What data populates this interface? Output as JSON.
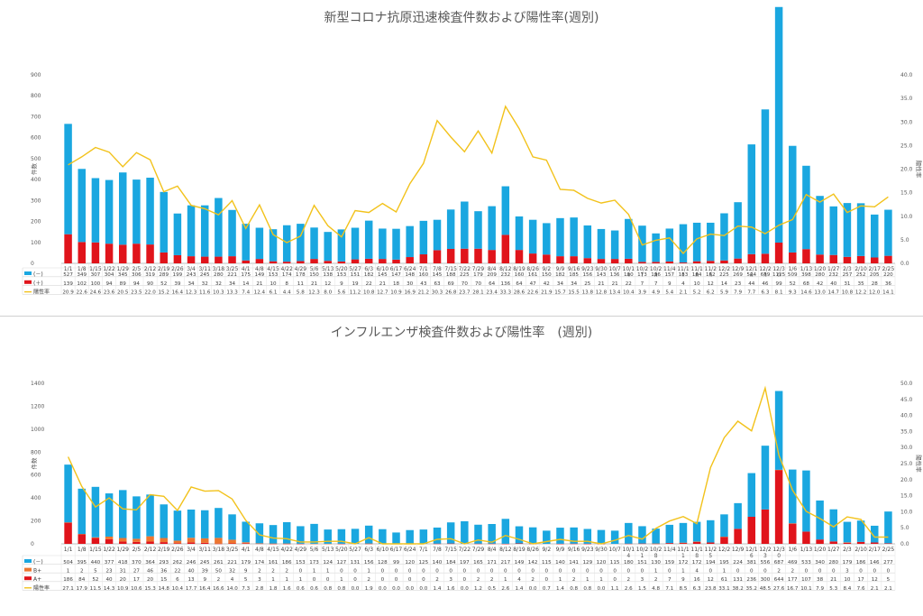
{
  "colors": {
    "neg": "#1aa7e0",
    "pos": "#e0141b",
    "bplus": "#ec7630",
    "rate": "#f2c21b"
  },
  "chart_data": [
    {
      "type": "bar",
      "title": "新型コロナ抗原迅速検査件数および陽性率(週別)",
      "ylabel": "件数",
      "y2label": "陽性率",
      "ylim": [
        0,
        900
      ],
      "y2lim": [
        0,
        40
      ],
      "yticks": [
        "0",
        "100",
        "200",
        "300",
        "400",
        "500",
        "600",
        "700",
        "800",
        "900"
      ],
      "y2ticks": [
        "0.0",
        "5.0",
        "10.0",
        "15.0",
        "20.0",
        "25.0",
        "30.0",
        "35.0",
        "40.0"
      ],
      "categories": [
        "1/1",
        "1/8",
        "1/15",
        "1/22",
        "1/29",
        "2/5",
        "2/12",
        "2/19",
        "2/26",
        "3/4",
        "3/11",
        "3/18",
        "3/25",
        "4/1",
        "4/8",
        "4/15",
        "4/22",
        "4/29",
        "5/6",
        "5/13",
        "5/20",
        "5/27",
        "6/3",
        "6/10",
        "6/17",
        "6/24",
        "7/1",
        "7/8",
        "7/15",
        "7/22",
        "7/29",
        "8/4",
        "8/12",
        "8/19",
        "8/26",
        "9/2",
        "9/9",
        "9/16",
        "9/23",
        "9/30",
        "10/7",
        "10/14",
        "10/21",
        "10/28",
        "11/4",
        "11/11",
        "11/18",
        "11/25",
        "12/2",
        "12/9",
        "12/16",
        "12/23",
        "12/30",
        "1/6",
        "1/13",
        "1/20",
        "1/27",
        "2/3",
        "2/10",
        "2/17",
        "2/25"
      ],
      "xlabels": [
        [
          "1/1"
        ],
        [
          "1/8"
        ],
        [
          "1/15"
        ],
        [
          "1/22"
        ],
        [
          "1/29"
        ],
        [
          "2/5"
        ],
        [
          "2/12"
        ],
        [
          "2/19"
        ],
        [
          "2/26"
        ],
        [
          "3/4"
        ],
        [
          "3/11"
        ],
        [
          "3/18"
        ],
        [
          "3/25"
        ],
        [
          "4/1"
        ],
        [
          "4/8"
        ],
        [
          "4/15"
        ],
        [
          "4/22"
        ],
        [
          "4/29"
        ],
        [
          "5/6"
        ],
        [
          "5/13"
        ],
        [
          "5/20"
        ],
        [
          "5/27"
        ],
        [
          "6/3"
        ],
        [
          "6/10"
        ],
        [
          "6/17"
        ],
        [
          "6/24"
        ],
        [
          "7/1"
        ],
        [
          "7/8"
        ],
        [
          "7/15"
        ],
        [
          "7/22"
        ],
        [
          "7/29"
        ],
        [
          "8/4"
        ],
        [
          "8/12"
        ],
        [
          "8/19"
        ],
        [
          "8/26"
        ],
        [
          "9/2"
        ],
        [
          "9/9"
        ],
        [
          "9/16"
        ],
        [
          "9/23"
        ],
        [
          "9/30"
        ],
        [
          "10/7"
        ],
        [
          "10/1",
          "4"
        ],
        [
          "10/2",
          "1"
        ],
        [
          "10/2",
          "8"
        ],
        [
          "11/4"
        ],
        [
          "11/1",
          "1"
        ],
        [
          "11/1",
          "8"
        ],
        [
          "11/2",
          "5"
        ],
        [
          "12/2"
        ],
        [
          "12/9"
        ],
        [
          "12/1",
          "6"
        ],
        [
          "12/2",
          "3"
        ],
        [
          "12/3",
          "0"
        ],
        [
          "1/6"
        ],
        [
          "1/13"
        ],
        [
          "1/20"
        ],
        [
          "1/27"
        ],
        [
          "2/3"
        ],
        [
          "2/10"
        ],
        [
          "2/17"
        ],
        [
          "2/25"
        ]
      ],
      "bar_series": [
        {
          "name": "(－)",
          "color_key": "neg",
          "values": [
            527,
            349,
            307,
            304,
            345,
            306,
            319,
            289,
            199,
            243,
            245,
            280,
            221,
            175,
            149,
            153,
            174,
            178,
            150,
            138,
            153,
            151,
            182,
            145,
            147,
            148,
            160,
            145,
            188,
            225,
            179,
            209,
            232,
            160,
            161,
            150,
            182,
            185,
            156,
            143,
            136,
            190,
            173,
            136,
            157,
            183,
            184,
            182,
            225,
            269,
            524,
            689,
            1125,
            509,
            398,
            280,
            232,
            257,
            252,
            205,
            220
          ]
        },
        {
          "name": "(＋)",
          "color_key": "pos",
          "values": [
            139,
            102,
            100,
            94,
            89,
            94,
            90,
            52,
            39,
            34,
            32,
            32,
            34,
            14,
            21,
            10,
            8,
            11,
            21,
            12,
            9,
            19,
            22,
            21,
            18,
            30,
            43,
            63,
            69,
            70,
            70,
            64,
            136,
            64,
            47,
            42,
            34,
            34,
            25,
            21,
            21,
            22,
            7,
            7,
            9,
            4,
            10,
            12,
            14,
            23,
            44,
            46,
            99,
            52,
            68,
            42,
            40,
            31,
            35,
            28,
            36
          ]
        }
      ],
      "rate_series": {
        "name": "陽性率",
        "color_key": "rate",
        "values": [
          20.9,
          22.6,
          24.6,
          23.6,
          20.5,
          23.5,
          22.0,
          15.2,
          16.4,
          12.3,
          11.6,
          10.3,
          13.3,
          7.4,
          12.4,
          6.1,
          4.4,
          5.8,
          12.3,
          8.0,
          5.6,
          11.2,
          10.8,
          12.7,
          10.9,
          16.9,
          21.2,
          30.3,
          26.8,
          23.7,
          28.1,
          23.4,
          33.3,
          28.6,
          22.6,
          21.9,
          15.7,
          15.5,
          13.8,
          12.8,
          13.4,
          10.4,
          3.9,
          4.9,
          5.4,
          2.1,
          5.2,
          6.2,
          5.9,
          7.9,
          7.7,
          6.3,
          8.1,
          9.3,
          14.6,
          13.0,
          14.7,
          10.8,
          12.2,
          12.0,
          14.1
        ]
      },
      "table_rows": [
        {
          "label": "(－)",
          "source": "bar_series.0"
        },
        {
          "label": "(＋)",
          "source": "bar_series.1"
        },
        {
          "label": "陽性率",
          "source": "rate_series",
          "decimals": 1
        }
      ]
    },
    {
      "type": "bar",
      "title": "インフルエンザ検査件数および陽性率　(週別)",
      "ylabel": "件数",
      "y2label": "陽性率",
      "ylim": [
        0,
        1400
      ],
      "y2lim": [
        0,
        50
      ],
      "yticks": [
        "0",
        "200",
        "400",
        "600",
        "800",
        "1000",
        "1200",
        "1400"
      ],
      "y2ticks": [
        "0.0",
        "5.0",
        "10.0",
        "15.0",
        "20.0",
        "25.0",
        "30.0",
        "35.0",
        "40.0",
        "45.0",
        "50.0"
      ],
      "categories": [
        "1/1",
        "1/8",
        "1/15",
        "1/22",
        "1/29",
        "2/5",
        "2/12",
        "2/19",
        "2/26",
        "3/4",
        "3/11",
        "3/18",
        "3/25",
        "4/1",
        "4/8",
        "4/15",
        "4/22",
        "4/29",
        "5/6",
        "5/13",
        "5/20",
        "5/27",
        "6/3",
        "6/10",
        "6/17",
        "6/24",
        "7/1",
        "7/8",
        "7/15",
        "7/22",
        "7/29",
        "8/4",
        "8/12",
        "8/19",
        "8/26",
        "9/2",
        "9/9",
        "9/16",
        "9/23",
        "9/30",
        "10/7",
        "10/14",
        "10/21",
        "10/28",
        "11/4",
        "11/11",
        "11/18",
        "11/25",
        "12/2",
        "12/9",
        "12/16",
        "12/23",
        "12/30",
        "1/6",
        "1/13",
        "1/20",
        "1/27",
        "2/3",
        "2/10",
        "2/17",
        "2/25"
      ],
      "xlabels": [
        [
          "1/1"
        ],
        [
          "1/8"
        ],
        [
          "1/15"
        ],
        [
          "1/22"
        ],
        [
          "1/29"
        ],
        [
          "2/5"
        ],
        [
          "2/12"
        ],
        [
          "2/19"
        ],
        [
          "2/26"
        ],
        [
          "3/4"
        ],
        [
          "3/11"
        ],
        [
          "3/18"
        ],
        [
          "3/25"
        ],
        [
          "4/1"
        ],
        [
          "4/8"
        ],
        [
          "4/15"
        ],
        [
          "4/22"
        ],
        [
          "4/29"
        ],
        [
          "5/6"
        ],
        [
          "5/13"
        ],
        [
          "5/20"
        ],
        [
          "5/27"
        ],
        [
          "6/3"
        ],
        [
          "6/10"
        ],
        [
          "6/17"
        ],
        [
          "6/24"
        ],
        [
          "7/1"
        ],
        [
          "7/8"
        ],
        [
          "7/15"
        ],
        [
          "7/22"
        ],
        [
          "7/29"
        ],
        [
          "8/4"
        ],
        [
          "8/12"
        ],
        [
          "8/19"
        ],
        [
          "8/26"
        ],
        [
          "9/2"
        ],
        [
          "9/9"
        ],
        [
          "9/16"
        ],
        [
          "9/23"
        ],
        [
          "9/30"
        ],
        [
          "10/7"
        ],
        [
          "10/1",
          "4"
        ],
        [
          "10/2",
          "1"
        ],
        [
          "10/2",
          "8"
        ],
        [
          "11/4"
        ],
        [
          "11/1",
          "1"
        ],
        [
          "11/1",
          "8"
        ],
        [
          "11/2",
          "5"
        ],
        [
          "12/2"
        ],
        [
          "12/9"
        ],
        [
          "12/1",
          "6"
        ],
        [
          "12/2",
          "3"
        ],
        [
          "12/3",
          "0"
        ],
        [
          "1/6"
        ],
        [
          "1/13"
        ],
        [
          "1/20"
        ],
        [
          "1/27"
        ],
        [
          "2/3"
        ],
        [
          "2/10"
        ],
        [
          "2/17"
        ],
        [
          "2/25"
        ]
      ],
      "bar_series": [
        {
          "name": "(－)",
          "color_key": "neg",
          "values": [
            504,
            395,
            440,
            377,
            418,
            370,
            364,
            293,
            262,
            246,
            245,
            261,
            221,
            179,
            174,
            161,
            186,
            153,
            173,
            124,
            127,
            131,
            156,
            128,
            99,
            120,
            125,
            140,
            184,
            197,
            165,
            171,
            217,
            149,
            142,
            115,
            140,
            141,
            129,
            120,
            115,
            180,
            151,
            130,
            159,
            172,
            172,
            194,
            195,
            224,
            381,
            556,
            687,
            469,
            533,
            340,
            280,
            179,
            186,
            146,
            277
          ]
        },
        {
          "name": "B+",
          "color_key": "bplus",
          "values": [
            1,
            2,
            5,
            23,
            31,
            27,
            46,
            36,
            22,
            40,
            39,
            50,
            32,
            9,
            2,
            2,
            2,
            0,
            1,
            1,
            0,
            0,
            1,
            0,
            0,
            0,
            0,
            0,
            0,
            0,
            0,
            0,
            0,
            0,
            0,
            0,
            0,
            0,
            0,
            0,
            0,
            0,
            0,
            1,
            0,
            1,
            4,
            0,
            1,
            0,
            0,
            0,
            2,
            2,
            0,
            0,
            0,
            3,
            0,
            0,
            0
          ]
        },
        {
          "name": "A+",
          "color_key": "pos",
          "values": [
            186,
            84,
            52,
            40,
            20,
            17,
            20,
            15,
            6,
            13,
            9,
            2,
            4,
            5,
            3,
            1,
            1,
            1,
            0,
            0,
            1,
            0,
            2,
            0,
            0,
            0,
            0,
            2,
            3,
            0,
            2,
            2,
            1,
            4,
            2,
            0,
            1,
            2,
            1,
            1,
            0,
            2,
            3,
            2,
            7,
            9,
            16,
            12,
            61,
            131,
            236,
            300,
            644,
            177,
            107,
            38,
            21,
            10,
            17,
            12,
            5
          ]
        }
      ],
      "rate_series": {
        "name": "陽性率",
        "color_key": "rate",
        "values": [
          27.1,
          17.9,
          11.5,
          14.3,
          10.9,
          10.6,
          15.3,
          14.8,
          10.4,
          17.7,
          16.4,
          16.6,
          14.0,
          7.3,
          2.8,
          1.8,
          1.6,
          0.6,
          0.6,
          0.8,
          0.8,
          0.0,
          1.9,
          0.0,
          0.0,
          0.0,
          0.0,
          1.4,
          1.6,
          0.0,
          1.2,
          0.5,
          2.6,
          1.4,
          0.0,
          0.7,
          1.4,
          0.8,
          0.8,
          0.0,
          1.1,
          2.6,
          1.5,
          4.8,
          7.1,
          8.5,
          6.3,
          23.8,
          33.1,
          38.2,
          35.2,
          48.5,
          27.6,
          16.7,
          10.1,
          7.9,
          5.3,
          8.4,
          7.6,
          2.1,
          2.1
        ]
      },
      "table_rows": [
        {
          "label": "(－)",
          "source": "bar_series.0"
        },
        {
          "label": "B+",
          "source": "bar_series.1"
        },
        {
          "label": "A+",
          "source": "bar_series.2"
        },
        {
          "label": "陽性率",
          "source": "rate_series",
          "decimals": 1
        }
      ]
    }
  ]
}
